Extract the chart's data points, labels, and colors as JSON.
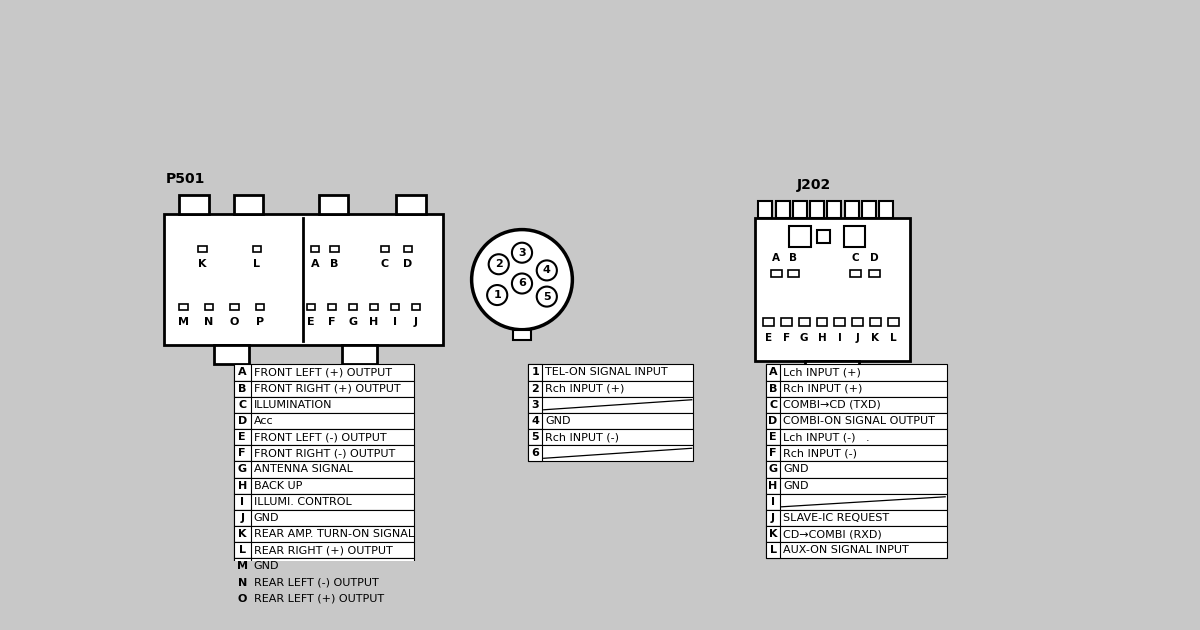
{
  "bg_color": "#c8c8c8",
  "p501_label": "P501",
  "j202_label": "J202",
  "p501_table": [
    [
      "A",
      "FRONT LEFT (+) OUTPUT"
    ],
    [
      "B",
      "FRONT RIGHT (+) OUTPUT"
    ],
    [
      "C",
      "ILLUMINATION"
    ],
    [
      "D",
      "Acc"
    ],
    [
      "E",
      "FRONT LEFT (-) OUTPUT"
    ],
    [
      "F",
      "FRONT RIGHT (-) OUTPUT"
    ],
    [
      "G",
      "ANTENNA SIGNAL"
    ],
    [
      "H",
      "BACK UP"
    ],
    [
      "I",
      "ILLUMI. CONTROL"
    ],
    [
      "J",
      "GND"
    ],
    [
      "K",
      "REAR AMP. TURN-ON SIGNAL"
    ],
    [
      "L",
      "REAR RIGHT (+) OUTPUT"
    ],
    [
      "M",
      "GND"
    ],
    [
      "N",
      "REAR LEFT (-) OUTPUT"
    ],
    [
      "O",
      "REAR LEFT (+) OUTPUT"
    ]
  ],
  "mid_table": [
    [
      "1",
      "TEL-ON SIGNAL INPUT"
    ],
    [
      "2",
      "Rch INPUT (+)"
    ],
    [
      "3",
      ""
    ],
    [
      "4",
      "GND"
    ],
    [
      "5",
      "Rch INPUT (-)"
    ],
    [
      "6",
      ""
    ]
  ],
  "j202_table": [
    [
      "A",
      "Lch INPUT (+)"
    ],
    [
      "B",
      "Rch INPUT (+)"
    ],
    [
      "C",
      "COMBI→CD (TXD)"
    ],
    [
      "D",
      "COMBI-ON SIGNAL OUTPUT"
    ],
    [
      "E",
      "Lch INPUT (-)   ."
    ],
    [
      "F",
      "Rch INPUT (-)"
    ],
    [
      "G",
      "GND"
    ],
    [
      "H",
      "GND"
    ],
    [
      "I",
      ""
    ],
    [
      "J",
      "SLAVE-IC REQUEST"
    ],
    [
      "K",
      "CD→COMBI (RXD)"
    ],
    [
      "L",
      "AUX-ON SIGNAL INPUT"
    ]
  ]
}
